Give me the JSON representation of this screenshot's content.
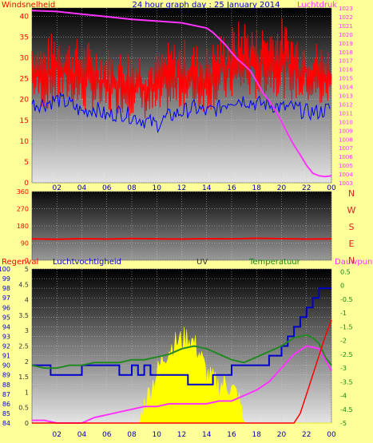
{
  "title": "24 hour graph day : 25 January 2014",
  "colors": {
    "background": "#ffff99",
    "wind_speed": "#ff0000",
    "wind_avg": "#0000ff",
    "pressure": "#ff33ff",
    "wind_dir": "#ff0000",
    "rain": "#ff0000",
    "humidity": "#0000cc",
    "uv": "#ffff00",
    "temperature": "#228822",
    "dewpoint": "#ff33ff"
  },
  "x_tick_labels": [
    "02",
    "04",
    "06",
    "08",
    "10",
    "12",
    "14",
    "16",
    "18",
    "20",
    "22",
    "00"
  ],
  "x_tick_hours": [
    2,
    4,
    6,
    8,
    10,
    12,
    14,
    16,
    18,
    20,
    22,
    24
  ],
  "panel_wind": {
    "left_label": "Windsnelheid",
    "right_label": "Luchtdruk",
    "left_ticks": [
      "0",
      "5",
      "10",
      "15",
      "20",
      "25",
      "30",
      "35",
      "40"
    ],
    "right_ticks": [
      "1003",
      "1004",
      "1005",
      "1006",
      "1007",
      "1008",
      "1009",
      "1010",
      "1011",
      "1012",
      "1013",
      "1014",
      "1015",
      "1016",
      "1017",
      "1018",
      "1019",
      "1020",
      "1021",
      "1022",
      "1023"
    ]
  },
  "panel_dir": {
    "ticks": [
      "0",
      "90",
      "180",
      "270",
      "360"
    ],
    "compass": [
      "N",
      "W",
      "S",
      "E",
      "N"
    ]
  },
  "panel_misc": {
    "labels": {
      "rain": "Regenval",
      "humidity": "Luchtvochtigheid",
      "uv": "UV",
      "temperature": "Temperatuur",
      "dewpoint": "Dauwpunt"
    },
    "humidity_ticks": [
      "84",
      "85",
      "86",
      "87",
      "88",
      "89",
      "90",
      "91",
      "92",
      "93",
      "94",
      "95",
      "96",
      "97",
      "98",
      "99",
      "100"
    ],
    "uv_ticks": [
      "0",
      "0.5",
      "1",
      "1.5",
      "2",
      "2.5",
      "3",
      "3.5",
      "4",
      "4.5",
      "5"
    ],
    "temp_ticks": [
      "-5",
      "-4.5",
      "-4",
      "-3.5",
      "-3",
      "-2.5",
      "-2",
      "-1.5",
      "-1",
      "-0.5",
      "0",
      "0.5"
    ]
  },
  "chart_data": [
    {
      "type": "line",
      "ylabel": "Windsnelheid",
      "ylabel_right": "Luchtdruk",
      "x_unit": "hour",
      "ylim": [
        0,
        42
      ],
      "ylim_right": [
        1003,
        1023
      ],
      "series": [
        {
          "name": "Windsnelheid",
          "band": true,
          "x": [
            0,
            1,
            2,
            3,
            4,
            5,
            6,
            7,
            8,
            9,
            10,
            11,
            12,
            13,
            14,
            15,
            16,
            17,
            18,
            19,
            20,
            21,
            22,
            23,
            24
          ],
          "low": [
            17,
            14,
            15,
            16,
            13,
            14,
            12,
            14,
            13,
            12,
            11,
            13,
            14,
            14,
            14,
            15,
            16,
            17,
            16,
            18,
            17,
            16,
            16,
            14,
            16
          ],
          "high": [
            36,
            34,
            38,
            35,
            35,
            34,
            33,
            32,
            33,
            32,
            32,
            34,
            35,
            34,
            33,
            36,
            38,
            40,
            38,
            39,
            40,
            37,
            36,
            34,
            33
          ]
        },
        {
          "name": "Gemiddelde wind",
          "x": [
            0,
            1,
            2,
            3,
            4,
            5,
            6,
            7,
            8,
            9,
            10,
            11,
            12,
            13,
            14,
            15,
            16,
            17,
            18,
            19,
            20,
            21,
            22,
            23,
            24
          ],
          "y": [
            19,
            19,
            20,
            19,
            17,
            18,
            16,
            17,
            16,
            15,
            14,
            16,
            17,
            18,
            17,
            18,
            20,
            20,
            19,
            19,
            18,
            18,
            17,
            17,
            18
          ]
        },
        {
          "name": "Luchtdruk",
          "axis": "right",
          "x": [
            0,
            2,
            4,
            6,
            8,
            10,
            12,
            14,
            14.5,
            15,
            15.5,
            16,
            16.5,
            17,
            17.5,
            18,
            18.5,
            19,
            19.5,
            20,
            20.5,
            21,
            21.5,
            22,
            22.5,
            23,
            23.5,
            24
          ],
          "y": [
            1022.7,
            1022.6,
            1022.3,
            1022.0,
            1021.7,
            1021.5,
            1021.3,
            1020.7,
            1020.2,
            1019.5,
            1018.8,
            1017.9,
            1017.1,
            1016.5,
            1015.8,
            1014.6,
            1013.3,
            1012.4,
            1011.3,
            1010.0,
            1008.6,
            1007.3,
            1006.2,
            1005.0,
            1004.1,
            1003.8,
            1003.7,
            1003.8
          ]
        }
      ]
    },
    {
      "type": "line",
      "ylabel": "",
      "x_unit": "hour",
      "ylim": [
        0,
        360
      ],
      "series": [
        {
          "name": "Windrichting",
          "x": [
            0,
            2,
            4,
            6,
            8,
            10,
            12,
            14,
            16,
            18,
            20,
            22,
            24
          ],
          "y": [
            112,
            110,
            113,
            111,
            114,
            112,
            111,
            113,
            112,
            115,
            113,
            111,
            112
          ]
        }
      ]
    },
    {
      "type": "line",
      "x_unit": "hour",
      "ylim": [
        84,
        100
      ],
      "ylim_uv": [
        0,
        5
      ],
      "ylim_temp": [
        -5,
        0.6
      ],
      "series": [
        {
          "name": "Luchtvochtigheid",
          "step": true,
          "x": [
            0,
            1,
            1.5,
            2,
            2.5,
            3,
            4,
            5,
            6,
            6.5,
            7,
            8,
            8.5,
            9,
            9.5,
            10,
            11,
            12,
            12.5,
            13,
            13.5,
            14,
            14.5,
            15,
            16,
            17,
            18,
            19,
            20,
            20.5,
            21,
            21.5,
            22,
            22.5,
            23,
            23.5,
            24
          ],
          "y": [
            90,
            90,
            89,
            89,
            89,
            89,
            90,
            90,
            90,
            90,
            89,
            90,
            89,
            90,
            89,
            89,
            89,
            89,
            88,
            88,
            88,
            88,
            89,
            89,
            90,
            90,
            90,
            91,
            92,
            93,
            94,
            95,
            96,
            97,
            98,
            98,
            98
          ]
        },
        {
          "name": "Regenval",
          "x": [
            0,
            19,
            20,
            20.5,
            21,
            21.5,
            22,
            22.5,
            23,
            23.5,
            24
          ],
          "y": [
            84,
            84,
            84,
            84,
            84,
            85,
            87,
            89,
            91,
            93,
            94.7
          ]
        },
        {
          "name": "UV",
          "axis": "uv",
          "x": [
            0,
            8.6,
            9,
            9.5,
            10,
            10.5,
            11,
            11.5,
            12,
            12.5,
            13,
            13.5,
            14,
            14.5,
            15,
            15.5,
            16,
            16.5,
            17,
            24
          ],
          "y": [
            0,
            0,
            0.6,
            1.1,
            1.6,
            2.1,
            2.4,
            2.6,
            2.7,
            2.8,
            2.6,
            2.2,
            1.6,
            1.4,
            1.2,
            1.3,
            1.1,
            0.9,
            0,
            0
          ]
        },
        {
          "name": "Temperatuur",
          "axis": "temp",
          "x": [
            0,
            1,
            2,
            3,
            4,
            5,
            6,
            7,
            8,
            9,
            10,
            11,
            12,
            13,
            14,
            15,
            16,
            17,
            18,
            19,
            20,
            21,
            22,
            22.5,
            23,
            23.5,
            24
          ],
          "y": [
            -2.9,
            -3.0,
            -3.0,
            -2.9,
            -2.9,
            -2.8,
            -2.8,
            -2.8,
            -2.7,
            -2.7,
            -2.6,
            -2.5,
            -2.3,
            -2.2,
            -2.3,
            -2.5,
            -2.7,
            -2.8,
            -2.6,
            -2.4,
            -2.2,
            -1.9,
            -1.8,
            -1.9,
            -2.1,
            -2.6,
            -2.9
          ]
        },
        {
          "name": "Dauwpunt",
          "axis": "temp",
          "x": [
            0,
            1,
            2,
            3,
            4,
            5,
            6,
            7,
            8,
            9,
            10,
            11,
            12,
            13,
            14,
            15,
            16,
            17,
            18,
            19,
            20,
            21,
            22,
            23,
            23.5,
            24
          ],
          "y": [
            -4.9,
            -4.9,
            -5.0,
            -5.0,
            -5.0,
            -4.8,
            -4.7,
            -4.6,
            -4.5,
            -4.4,
            -4.4,
            -4.3,
            -4.3,
            -4.3,
            -4.3,
            -4.2,
            -4.2,
            -4.0,
            -3.8,
            -3.5,
            -3.0,
            -2.5,
            -2.2,
            -2.3,
            -2.7,
            -3.1
          ]
        }
      ]
    }
  ]
}
